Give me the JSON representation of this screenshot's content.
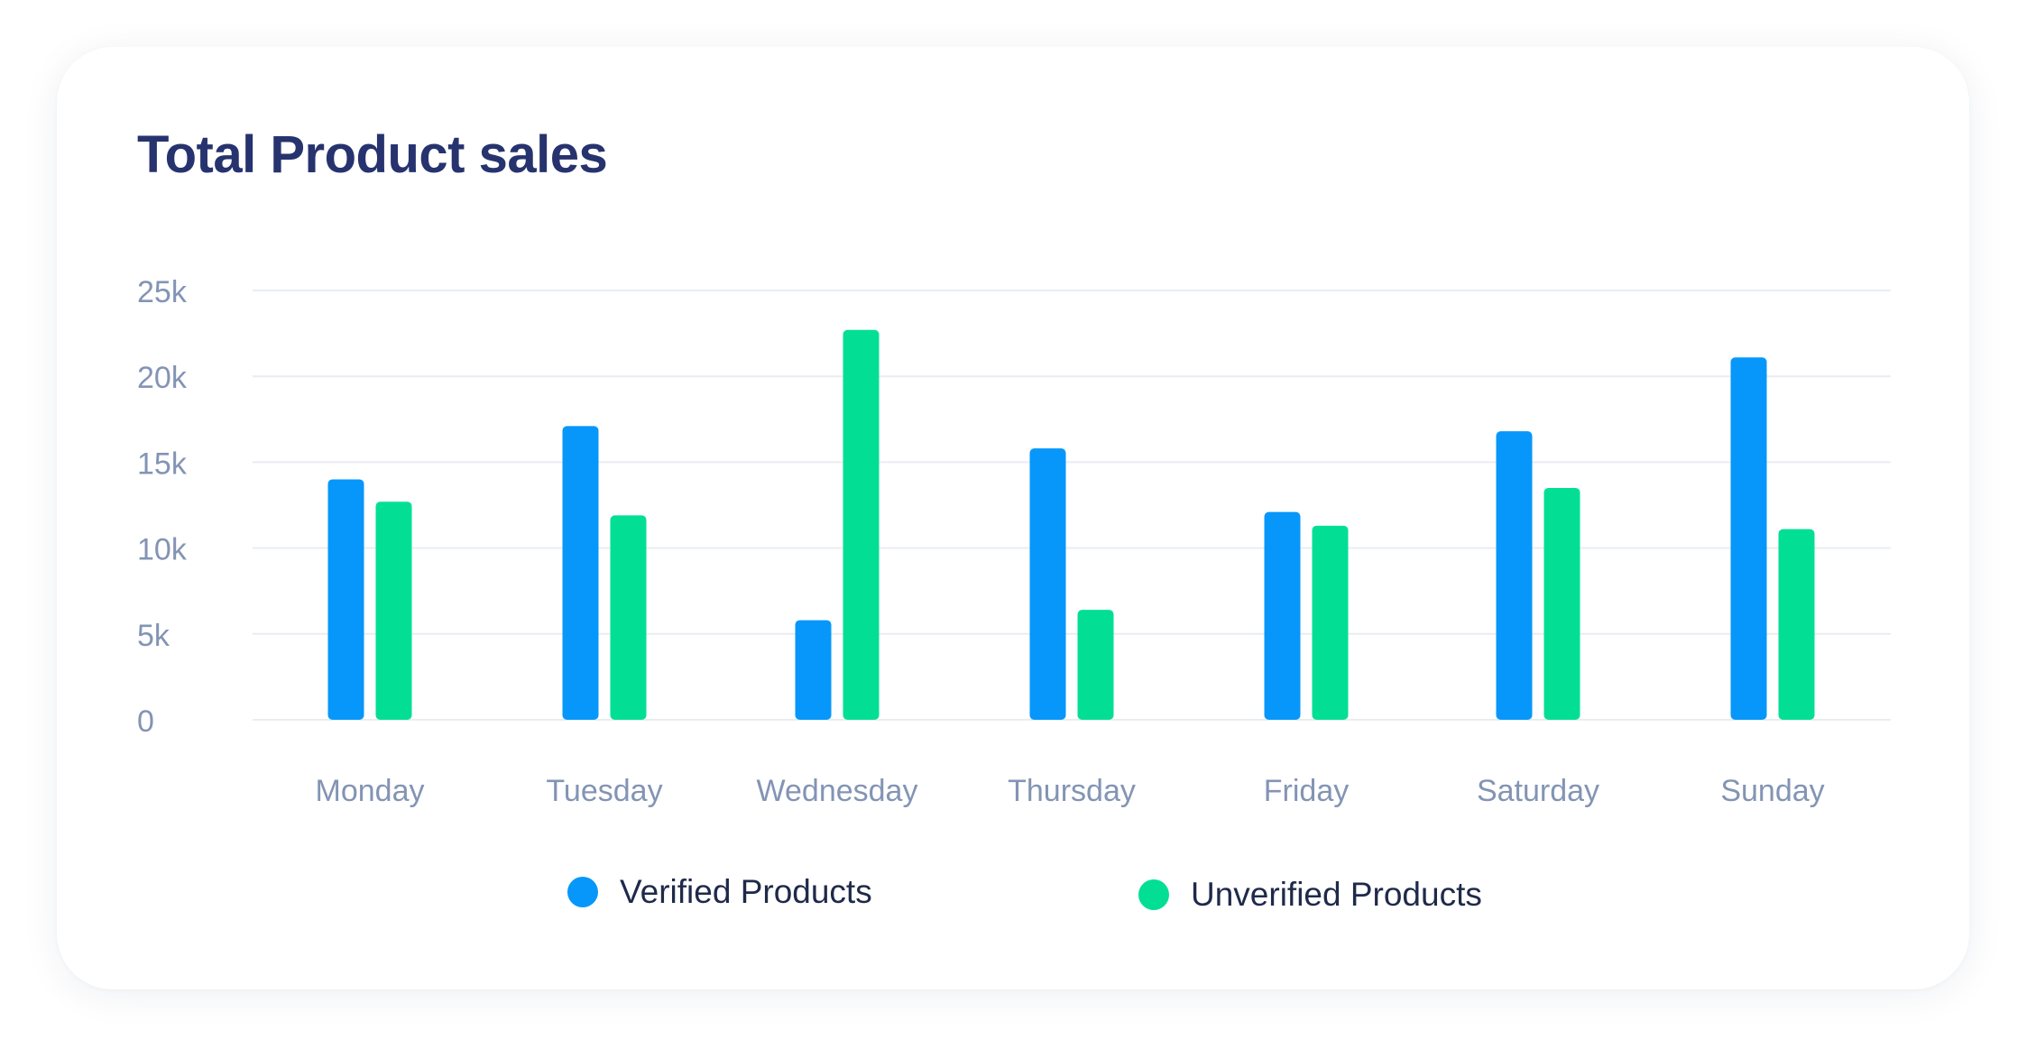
{
  "colors": {
    "verified": "#0797fa",
    "unverified": "#02df94",
    "grid": "#e9edf2",
    "axis_text": "#8394b4"
  },
  "chart_data": {
    "type": "bar",
    "title": "Total Product sales",
    "categories": [
      "Monday",
      "Tuesday",
      "Wednesday",
      "Thursday",
      "Friday",
      "Saturday",
      "Sunday"
    ],
    "series": [
      {
        "name": "Verified Products",
        "values": [
          14000,
          17100,
          5800,
          15800,
          12100,
          16800,
          21100
        ]
      },
      {
        "name": "Unverified Products",
        "values": [
          12700,
          11900,
          22700,
          6400,
          11300,
          13500,
          11100
        ]
      }
    ],
    "yticks": [
      "0",
      "5k",
      "10k",
      "15k",
      "20k",
      "25k"
    ],
    "ytick_values": [
      0,
      5000,
      10000,
      15000,
      20000,
      25000
    ],
    "ylim": [
      0,
      25000
    ],
    "grid": true,
    "legend_position": "bottom-center"
  }
}
